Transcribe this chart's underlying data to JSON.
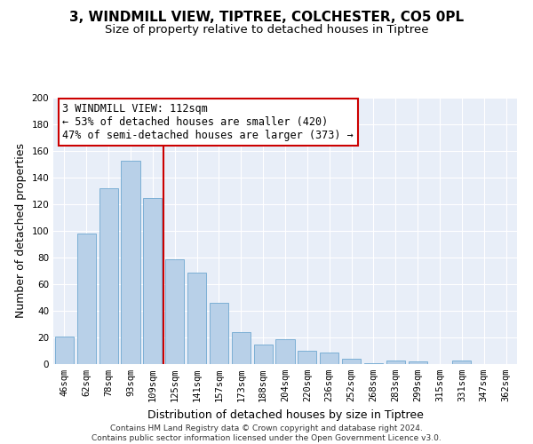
{
  "title": "3, WINDMILL VIEW, TIPTREE, COLCHESTER, CO5 0PL",
  "subtitle": "Size of property relative to detached houses in Tiptree",
  "xlabel": "Distribution of detached houses by size in Tiptree",
  "ylabel": "Number of detached properties",
  "categories": [
    "46sqm",
    "62sqm",
    "78sqm",
    "93sqm",
    "109sqm",
    "125sqm",
    "141sqm",
    "157sqm",
    "173sqm",
    "188sqm",
    "204sqm",
    "220sqm",
    "236sqm",
    "252sqm",
    "268sqm",
    "283sqm",
    "299sqm",
    "315sqm",
    "331sqm",
    "347sqm",
    "362sqm"
  ],
  "values": [
    21,
    98,
    132,
    153,
    125,
    79,
    69,
    46,
    24,
    15,
    19,
    10,
    9,
    4,
    1,
    3,
    2,
    0,
    3,
    0,
    0
  ],
  "bar_color": "#b8d0e8",
  "bar_edge_color": "#6fa8d0",
  "vline_x_idx": 4.5,
  "vline_color": "#cc0000",
  "annotation_line1": "3 WINDMILL VIEW: 112sqm",
  "annotation_line2": "← 53% of detached houses are smaller (420)",
  "annotation_line3": "47% of semi-detached houses are larger (373) →",
  "annotation_box_color": "#ffffff",
  "annotation_box_edge": "#cc0000",
  "ylim": [
    0,
    200
  ],
  "yticks": [
    0,
    20,
    40,
    60,
    80,
    100,
    120,
    140,
    160,
    180,
    200
  ],
  "background_color": "#ffffff",
  "plot_bg_color": "#e8eef8",
  "grid_color": "#ffffff",
  "footer_line1": "Contains HM Land Registry data © Crown copyright and database right 2024.",
  "footer_line2": "Contains public sector information licensed under the Open Government Licence v3.0.",
  "title_fontsize": 11,
  "subtitle_fontsize": 9.5,
  "axis_label_fontsize": 9,
  "tick_fontsize": 7.5,
  "annotation_fontsize": 8.5,
  "footer_fontsize": 6.5
}
